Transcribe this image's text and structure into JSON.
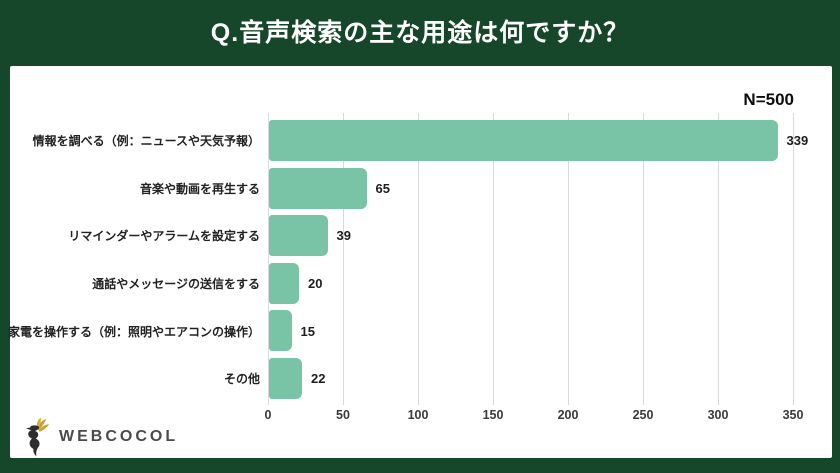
{
  "header": {
    "title": "Q.音声検索の主な用途は何ですか？"
  },
  "chart_data": {
    "type": "bar",
    "orientation": "horizontal",
    "title": "Q.音声検索の主な用途は何ですか？",
    "sample_label": "N=500",
    "categories": [
      "情報を調べる（例：ニュースや天気予報）",
      "音楽や動画を再生する",
      "リマインダーやアラームを設定する",
      "通話やメッセージの送信をする",
      "家電を操作する（例：照明やエアコンの操作）",
      "その他"
    ],
    "values": [
      339,
      65,
      39,
      20,
      15,
      22
    ],
    "xlim": [
      0,
      350
    ],
    "x_ticks": [
      0,
      50,
      100,
      150,
      200,
      250,
      300,
      350
    ],
    "grid": true,
    "legend": "none",
    "bar_color": "#79C4A6"
  },
  "footer": {
    "brand": "WEBCOCOL"
  },
  "colors": {
    "frame_green": "#17472A",
    "panel_white": "#FFFFFF",
    "bar_teal": "#79C4A6",
    "feather_gold": "#C8A02C",
    "logo_gray": "#4B4B4B"
  }
}
